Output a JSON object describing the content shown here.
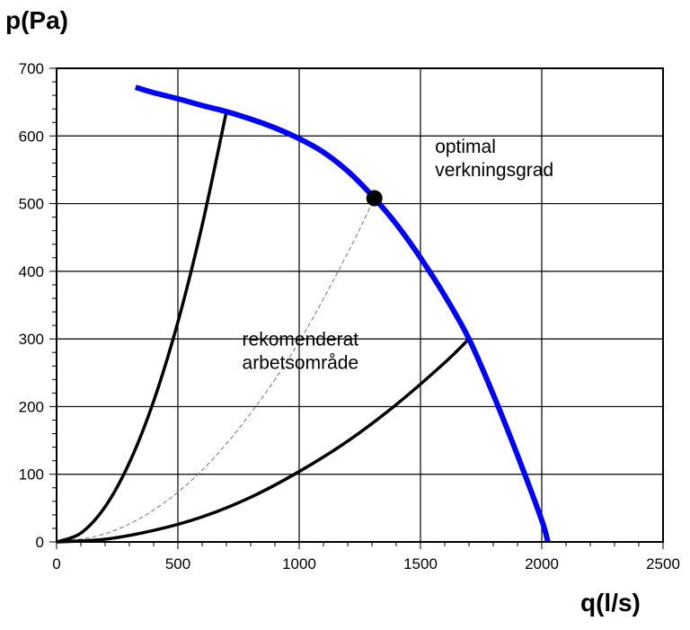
{
  "chart_data": {
    "type": "line",
    "title": "",
    "xlabel": "q(l/s)",
    "ylabel": "p(Pa)",
    "xlim": [
      0,
      2500
    ],
    "ylim": [
      0,
      700
    ],
    "xticks": [
      0,
      500,
      1000,
      1500,
      2000,
      2500
    ],
    "yticks": [
      0,
      100,
      200,
      300,
      400,
      500,
      600,
      700
    ],
    "grid": true,
    "series": [
      {
        "name": "fan curve",
        "color": "#0000ff",
        "x": [
          325,
          400,
          500,
          600,
          700,
          800,
          900,
          1000,
          1100,
          1200,
          1300,
          1400,
          1500,
          1600,
          1700,
          1800,
          1900,
          2000,
          2025
        ],
        "y": [
          672,
          664,
          655,
          645,
          636,
          625,
          612,
          596,
          576,
          548,
          512,
          470,
          420,
          364,
          300,
          218,
          128,
          32,
          0
        ]
      },
      {
        "name": "system curve (left boundary)",
        "color": "#000000",
        "x": [
          0,
          100,
          200,
          300,
          400,
          500,
          600,
          700
        ],
        "y": [
          0,
          13,
          52,
          117,
          208,
          325,
          468,
          636
        ]
      },
      {
        "name": "system curve (optimal efficiency)",
        "color": "#777777",
        "dashed": true,
        "x": [
          0,
          200,
          400,
          600,
          800,
          1000,
          1200,
          1310
        ],
        "y": [
          0,
          12,
          47,
          106,
          190,
          296,
          427,
          508
        ]
      },
      {
        "name": "system curve (right boundary)",
        "color": "#000000",
        "x": [
          0,
          200,
          400,
          600,
          800,
          1000,
          1200,
          1400,
          1600,
          1700
        ],
        "y": [
          0,
          4,
          17,
          37,
          66,
          104,
          149,
          203,
          265,
          300
        ]
      }
    ],
    "points": [
      {
        "name": "optimal efficiency point",
        "x": 1310,
        "y": 508
      }
    ],
    "annotations": [
      {
        "lines": [
          "optimal",
          "verkningsgrad"
        ],
        "x": 1560,
        "y": 575
      },
      {
        "lines": [
          "rekomenderat",
          "arbetsområde"
        ],
        "x": 765,
        "y": 290
      }
    ]
  }
}
